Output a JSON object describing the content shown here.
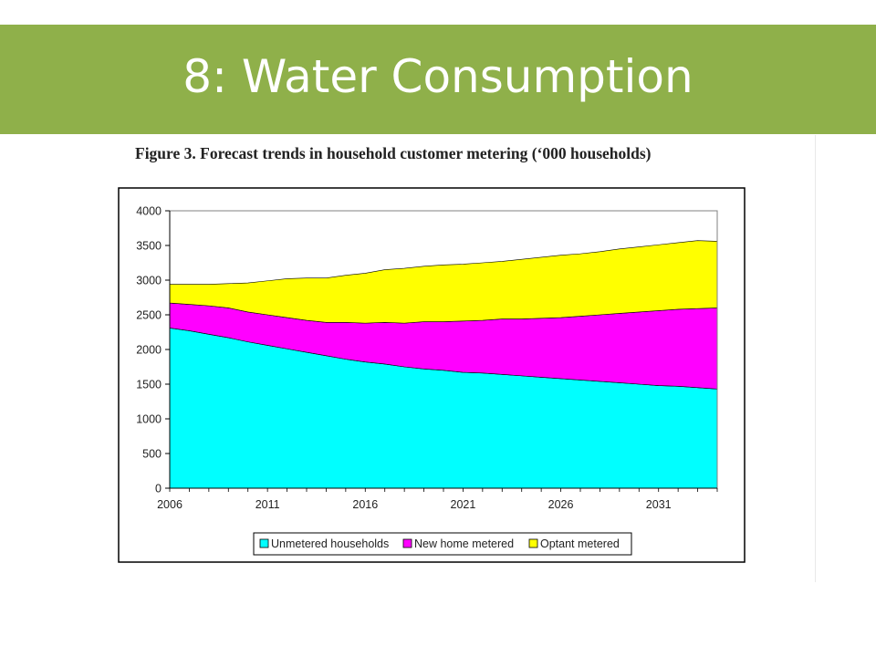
{
  "slide": {
    "title": "8: Water Consumption",
    "figure_caption": "Figure 3. Forecast trends in household customer metering (‘000 households)"
  },
  "chart_data": {
    "type": "area",
    "stacked": true,
    "title": "",
    "xlabel": "",
    "ylabel": "",
    "xlim": [
      2006,
      2034
    ],
    "ylim": [
      0,
      4000
    ],
    "x_ticks": [
      "2006",
      "2011",
      "2016",
      "2021",
      "2026",
      "2031"
    ],
    "y_ticks": [
      "4000",
      "3500",
      "3000",
      "2500",
      "2000",
      "1500",
      "1000",
      "500",
      "0"
    ],
    "grid": false,
    "legend_position": "bottom",
    "x": [
      2006,
      2007,
      2008,
      2009,
      2010,
      2011,
      2012,
      2013,
      2014,
      2015,
      2016,
      2017,
      2018,
      2019,
      2020,
      2021,
      2022,
      2023,
      2024,
      2025,
      2026,
      2027,
      2028,
      2029,
      2030,
      2031,
      2032,
      2033,
      2034
    ],
    "series": [
      {
        "name": "Unmetered households",
        "color": "#00ffff",
        "values": [
          2310,
          2270,
          2220,
          2170,
          2110,
          2060,
          2010,
          1960,
          1910,
          1860,
          1820,
          1790,
          1750,
          1720,
          1700,
          1670,
          1660,
          1640,
          1620,
          1600,
          1580,
          1560,
          1540,
          1520,
          1500,
          1480,
          1470,
          1450,
          1430
        ]
      },
      {
        "name": "New home metered",
        "color": "#ff00ff",
        "values": [
          360,
          380,
          410,
          430,
          430,
          440,
          450,
          460,
          480,
          530,
          560,
          600,
          630,
          680,
          700,
          740,
          760,
          800,
          820,
          850,
          880,
          920,
          960,
          1000,
          1040,
          1080,
          1110,
          1140,
          1170
        ]
      },
      {
        "name": "Optant metered",
        "color": "#ffff00",
        "values": [
          270,
          290,
          310,
          350,
          420,
          490,
          560,
          610,
          640,
          680,
          720,
          760,
          790,
          800,
          820,
          820,
          830,
          830,
          860,
          880,
          900,
          900,
          910,
          930,
          940,
          950,
          960,
          980,
          960
        ]
      }
    ]
  }
}
